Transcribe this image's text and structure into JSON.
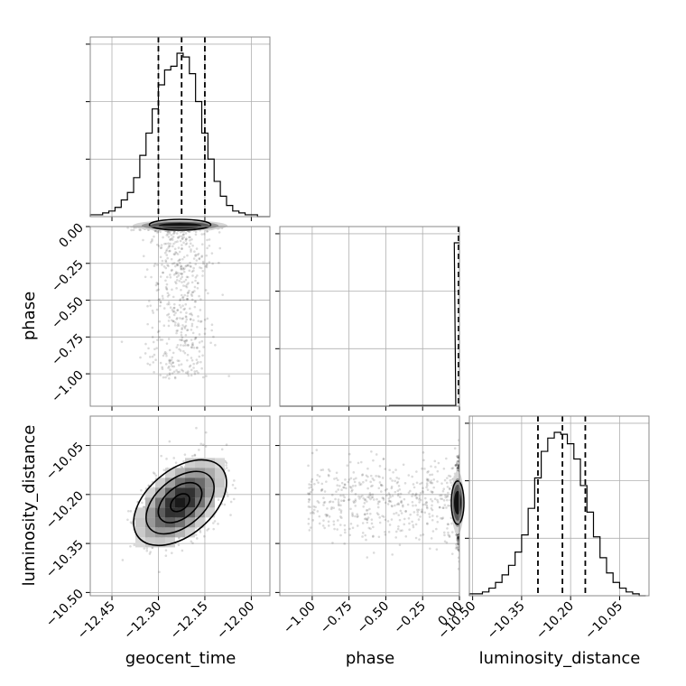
{
  "chart_data": {
    "type": "corner",
    "parameters": [
      "geocent_time",
      "phase",
      "luminosity_distance"
    ],
    "axis_labels": {
      "x": [
        "geocent_time",
        "phase",
        "luminosity_distance"
      ],
      "y_row1": "phase",
      "y_row2": "luminosity_distance"
    },
    "ranges": {
      "geocent_time": [
        -12.52,
        -11.94
      ],
      "phase": [
        -1.22,
        0.0
      ],
      "luminosity_distance": [
        -10.51,
        -9.96
      ]
    },
    "ticks": {
      "geocent_time": [
        -12.45,
        -12.3,
        -12.15,
        -12.0
      ],
      "phase": [
        -1.0,
        -0.75,
        -0.5,
        -0.25,
        0.0
      ],
      "luminosity_distance": [
        -10.5,
        -10.35,
        -10.2,
        -10.05
      ]
    },
    "tick_labels": {
      "geocent_time": [
        "−12.45",
        "−12.30",
        "−12.15",
        "−12.00"
      ],
      "phase": [
        "−1.00",
        "−0.75",
        "−0.50",
        "−0.25",
        "0.00"
      ],
      "luminosity_distance": [
        "−10.50",
        "−10.35",
        "−10.20",
        "−10.05"
      ]
    },
    "quantiles": {
      "geocent_time": [
        -12.3,
        -12.225,
        -12.15
      ],
      "phase": [
        0.0
      ],
      "luminosity_distance": [
        -10.3,
        -10.225,
        -10.155
      ]
    },
    "histograms": {
      "geocent_time": {
        "x": [
          -12.51,
          -12.49,
          -12.47,
          -12.45,
          -12.43,
          -12.41,
          -12.39,
          -12.37,
          -12.35,
          -12.33,
          -12.31,
          -12.29,
          -12.27,
          -12.25,
          -12.23,
          -12.21,
          -12.19,
          -12.17,
          -12.15,
          -12.13,
          -12.11,
          -12.09,
          -12.07,
          -12.05,
          -12.03,
          -12.01,
          -11.99,
          -11.97,
          -11.95
        ],
        "values": [
          1,
          1,
          2,
          3,
          5,
          9,
          13,
          21,
          33,
          45,
          58,
          71,
          79,
          81,
          88,
          86,
          77,
          62,
          45,
          31,
          19,
          11,
          6,
          3,
          2,
          1,
          1,
          0,
          0
        ]
      },
      "phase": {
        "x": [
          -1.2,
          -1.15,
          -1.1,
          -1.05,
          -1.0,
          -0.95,
          -0.9,
          -0.85,
          -0.8,
          -0.75,
          -0.7,
          -0.65,
          -0.6,
          -0.55,
          -0.5,
          -0.45,
          -0.4,
          -0.35,
          -0.3,
          -0.25,
          -0.2,
          -0.15,
          -0.1,
          -0.05,
          -0.01
        ],
        "values": [
          0,
          0,
          0,
          0,
          0,
          0,
          0,
          0,
          0,
          0,
          0,
          0,
          0,
          0,
          0,
          0.4,
          0.4,
          0.4,
          0.4,
          0.4,
          0.4,
          0.4,
          0.4,
          0.4,
          100
        ]
      },
      "luminosity_distance": {
        "x": [
          -10.5,
          -10.48,
          -10.46,
          -10.44,
          -10.42,
          -10.4,
          -10.38,
          -10.36,
          -10.34,
          -10.32,
          -10.3,
          -10.28,
          -10.26,
          -10.24,
          -10.22,
          -10.2,
          -10.18,
          -10.16,
          -10.14,
          -10.12,
          -10.1,
          -10.08,
          -10.06,
          -10.04,
          -10.02,
          -10.0,
          -9.98
        ],
        "values": [
          1,
          1,
          2,
          4,
          7,
          11,
          16,
          23,
          32,
          46,
          62,
          76,
          83,
          86,
          85,
          80,
          72,
          58,
          44,
          31,
          20,
          12,
          7,
          4,
          2,
          1,
          0
        ]
      }
    },
    "pairs": [
      {
        "x": "geocent_time",
        "y": "phase",
        "x_center": -12.23,
        "x_sd": 0.05,
        "y_peak": 0.0,
        "y_spread": 0.45
      },
      {
        "x": "geocent_time",
        "y": "luminosity_distance",
        "x_center": -12.23,
        "x_sd": 0.06,
        "y_center": -10.225,
        "y_sd": 0.06,
        "correlation": 0.45
      },
      {
        "x": "phase",
        "y": "luminosity_distance",
        "x_peak": 0.0,
        "x_spread": 0.45,
        "y_center": -10.225,
        "y_sd": 0.06
      }
    ],
    "grid": true
  }
}
